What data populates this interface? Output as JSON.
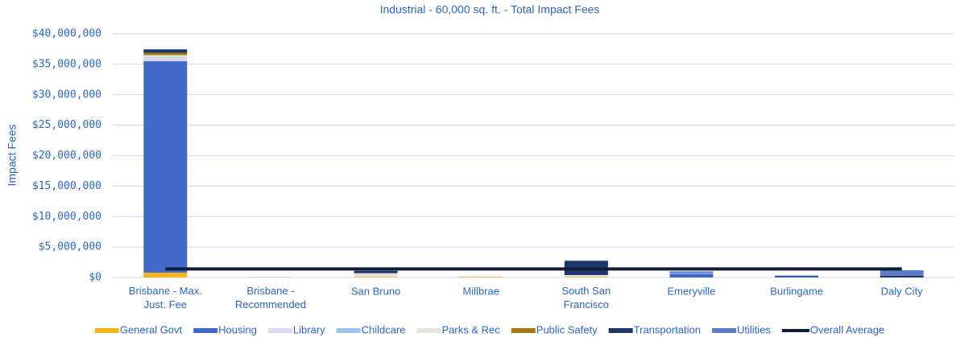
{
  "chart_data": {
    "type": "bar",
    "stacked": true,
    "title": "Industrial - 60,000 sq. ft. - Total Impact Fees",
    "y_label": "Impact Fees",
    "categories": [
      "Brisbane - Max. Just. Fee",
      "Brisbane - Recommended",
      "San Bruno",
      "Millbrae",
      "South San Francisco",
      "Emeryville",
      "Burlingame",
      "Daly City"
    ],
    "series": [
      {
        "name": "General Govt",
        "color": "#f5b41a",
        "values": [
          800000,
          5000,
          100000,
          100000,
          100000,
          0,
          0,
          0
        ]
      },
      {
        "name": "Housing",
        "color": "#4169c8",
        "values": [
          34700000,
          5000,
          0,
          0,
          0,
          600000,
          200000,
          0
        ]
      },
      {
        "name": "Library",
        "color": "#d9dcee",
        "values": [
          500000,
          5000,
          0,
          0,
          0,
          100000,
          0,
          0
        ]
      },
      {
        "name": "Childcare",
        "color": "#9dc3f0",
        "values": [
          100000,
          5000,
          0,
          0,
          0,
          0,
          0,
          0
        ]
      },
      {
        "name": "Parks & Rec",
        "color": "#e8e2da",
        "values": [
          400000,
          5000,
          600000,
          100000,
          300000,
          0,
          0,
          0
        ]
      },
      {
        "name": "Public Safety",
        "color": "#a07a10",
        "values": [
          400000,
          5000,
          0,
          0,
          0,
          0,
          0,
          0
        ]
      },
      {
        "name": "Transportation",
        "color": "#1f3468",
        "values": [
          500000,
          5000,
          400000,
          0,
          2300000,
          0,
          100000,
          300000
        ]
      },
      {
        "name": "Utilities",
        "color": "#5b7ec8",
        "values": [
          100000,
          5000,
          0,
          0,
          100000,
          300000,
          0,
          900000
        ]
      },
      {
        "name": "Overall Average",
        "color": "#0d1e3a",
        "type": "line",
        "values": [
          1400000,
          1400000,
          1400000,
          1400000,
          1400000,
          1400000,
          1400000,
          1400000
        ]
      }
    ],
    "ylim": [
      0,
      40000000
    ],
    "yticks": [
      {
        "value": 0,
        "label": "$0"
      },
      {
        "value": 5000000,
        "label": "$5,000,000"
      },
      {
        "value": 10000000,
        "label": "$10,000,000"
      },
      {
        "value": 15000000,
        "label": "$15,000,000"
      },
      {
        "value": 20000000,
        "label": "$20,000,000"
      },
      {
        "value": 25000000,
        "label": "$25,000,000"
      },
      {
        "value": 30000000,
        "label": "$30,000,000"
      },
      {
        "value": 35000000,
        "label": "$35,000,000"
      },
      {
        "value": 40000000,
        "label": "$40,000,000"
      }
    ],
    "grid": true,
    "legend": "bottom"
  }
}
